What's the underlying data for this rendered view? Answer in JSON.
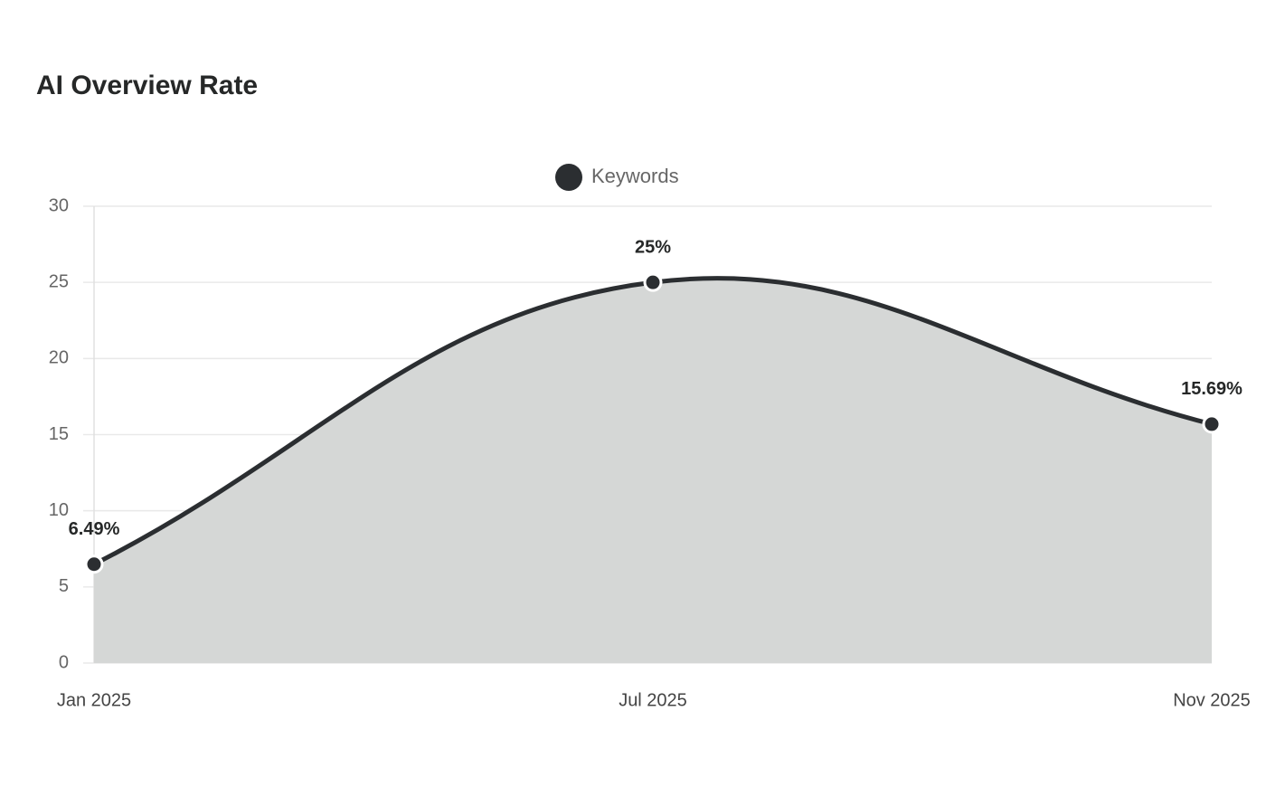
{
  "chart_data": {
    "type": "area",
    "title": "AI Overview Rate",
    "categories": [
      "Jan 2025",
      "Jul 2025",
      "Nov 2025"
    ],
    "series": [
      {
        "name": "Keywords",
        "color": "#2b2e31",
        "area_color": "#d5d7d6",
        "values": [
          6.49,
          25,
          15.69
        ],
        "value_labels": [
          "6.49%",
          "25%",
          "15.69%"
        ]
      }
    ],
    "ylim": [
      0,
      30
    ],
    "yticks": [
      0,
      5,
      10,
      15,
      20,
      25,
      30
    ],
    "grid": true,
    "legend": "top",
    "smooth": true
  }
}
